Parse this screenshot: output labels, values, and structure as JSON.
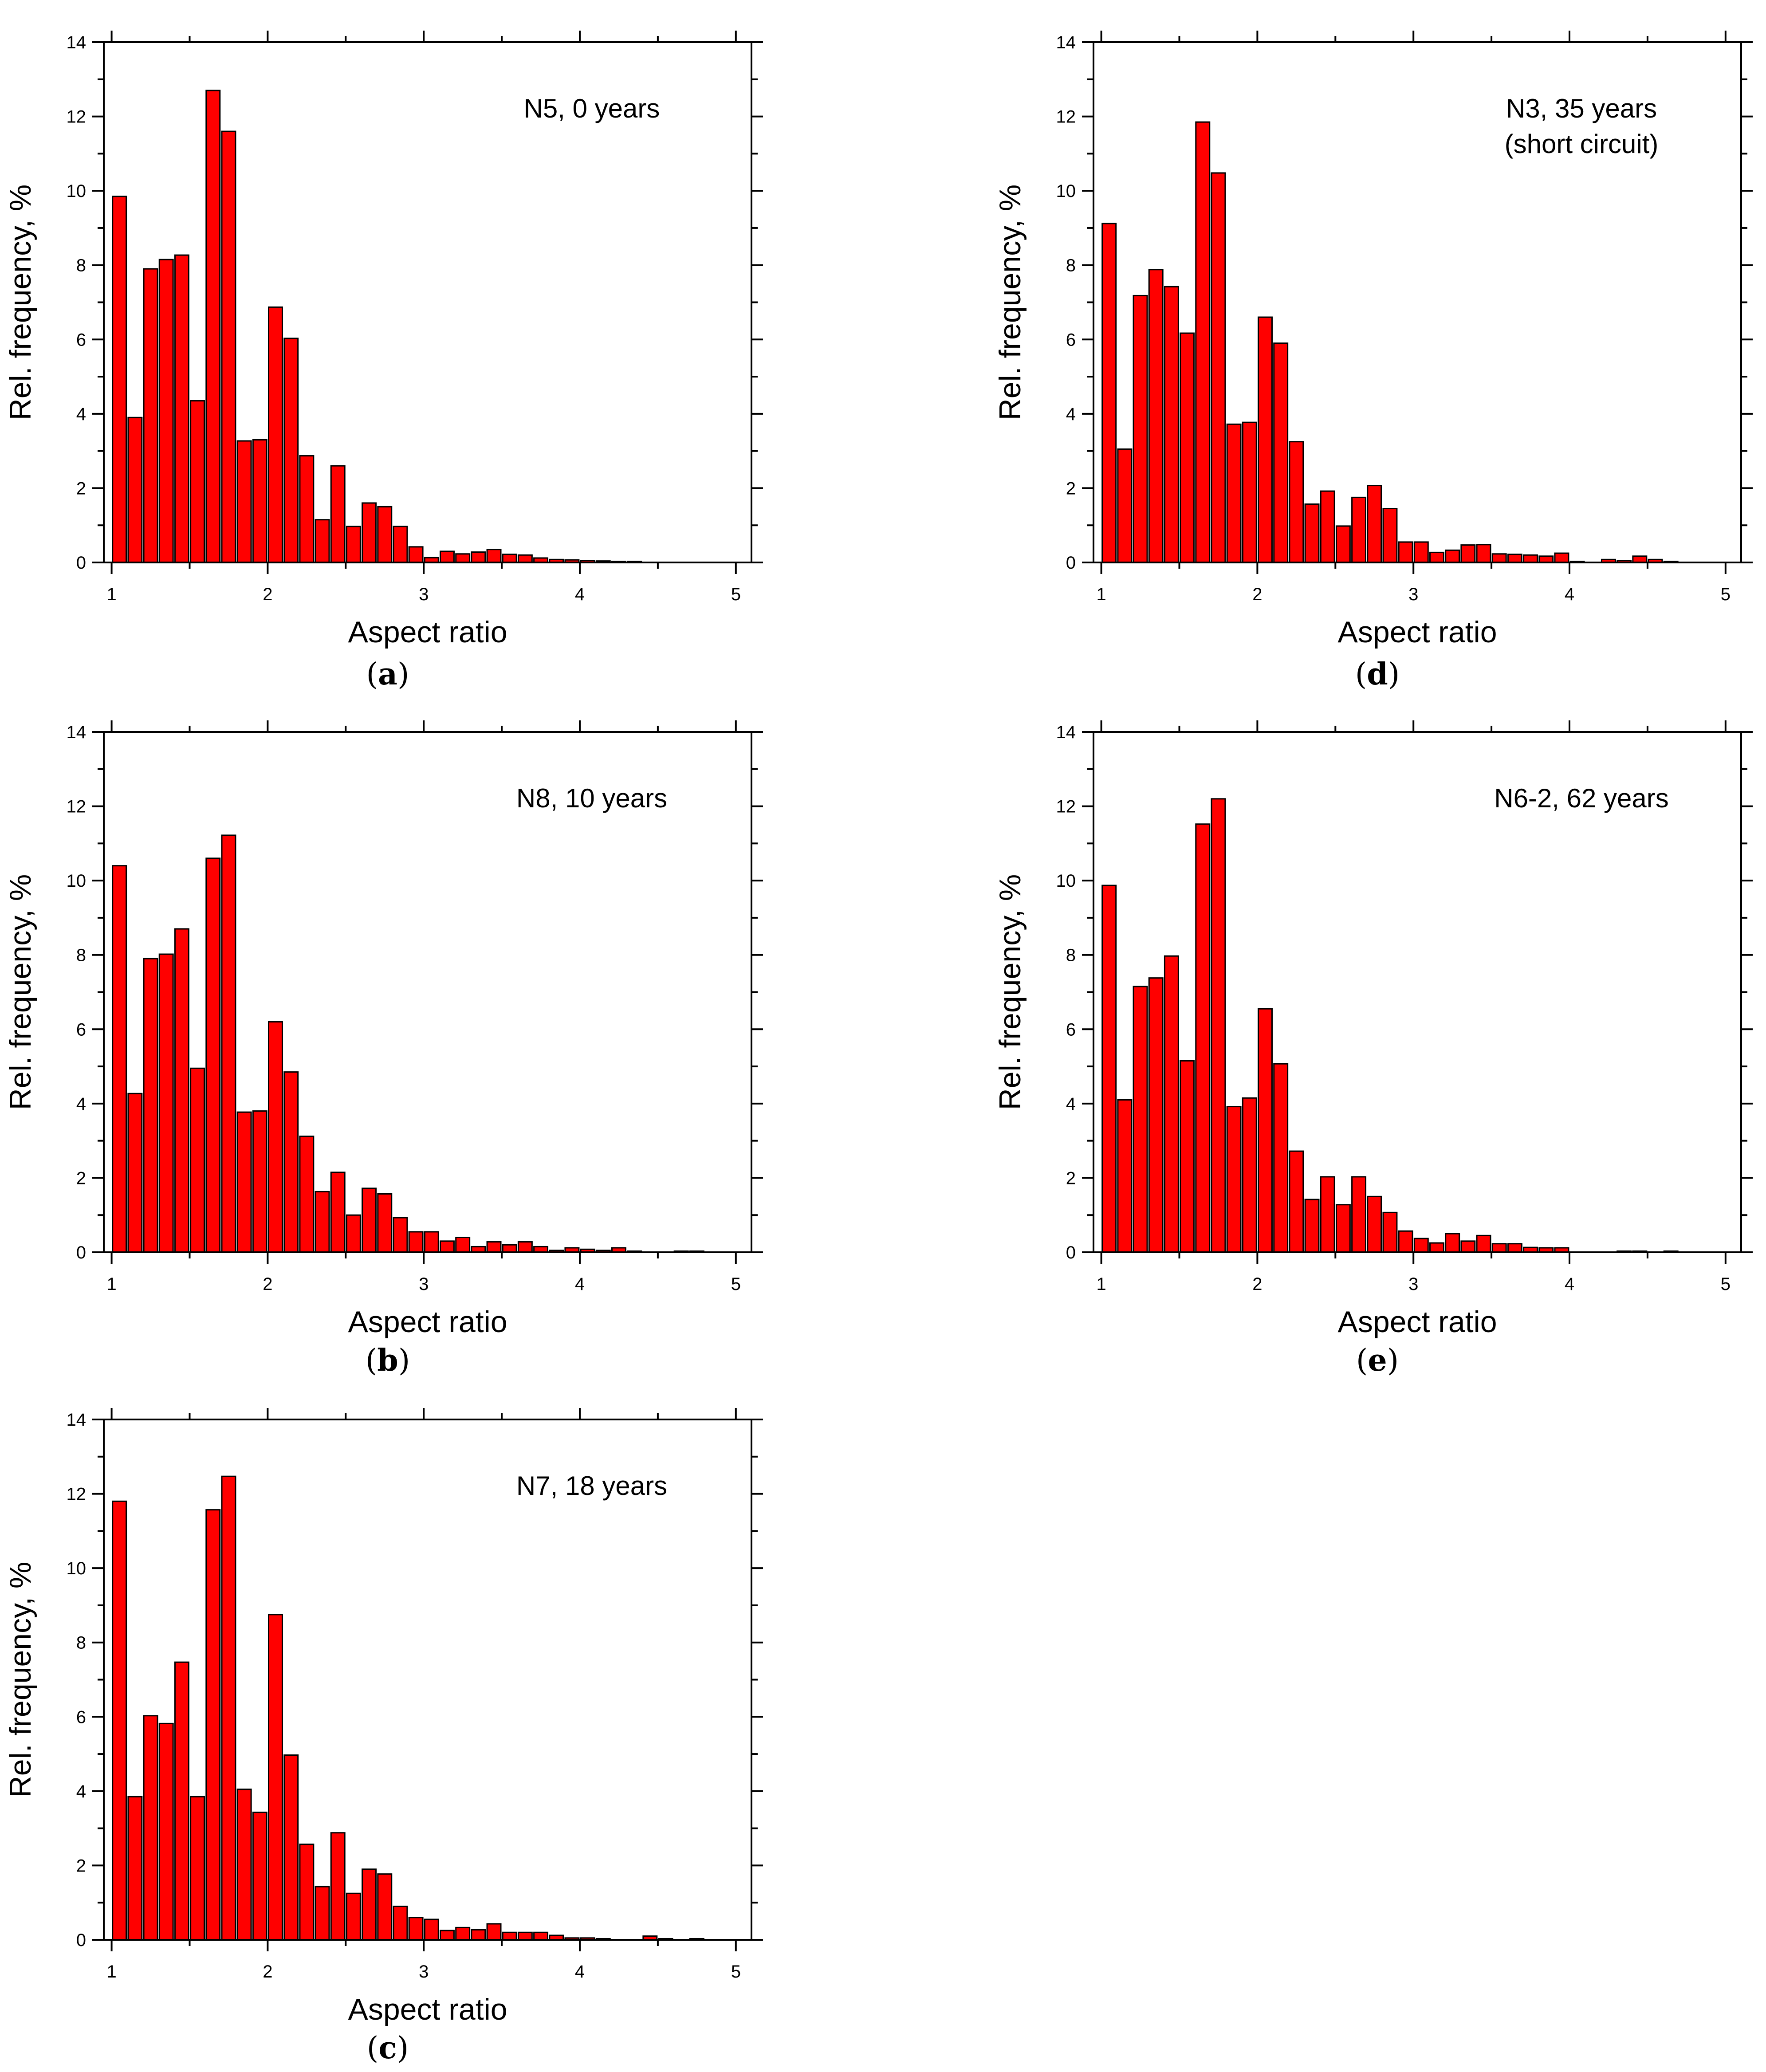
{
  "figure": {
    "colors": {
      "bar_fill": "#ff0000",
      "bar_stroke": "#000000",
      "axis": "#000000",
      "background": "#ffffff"
    }
  },
  "chart_data": [
    {
      "id": "a",
      "type": "bar",
      "panel_label": "a",
      "annotation": [
        "N5, 0 years"
      ],
      "xlabel": "Aspect ratio",
      "ylabel": "Rel. frequency, %",
      "xlim": [
        0.95,
        5.1
      ],
      "ylim": [
        0,
        14
      ],
      "xticks": [
        1,
        2,
        3,
        4,
        5
      ],
      "yticks": [
        0,
        2,
        4,
        6,
        8,
        10,
        12,
        14
      ],
      "bin_width": 0.1,
      "x": [
        1.05,
        1.15,
        1.25,
        1.35,
        1.45,
        1.55,
        1.65,
        1.75,
        1.85,
        1.95,
        2.05,
        2.15,
        2.25,
        2.35,
        2.45,
        2.55,
        2.65,
        2.75,
        2.85,
        2.95,
        3.05,
        3.15,
        3.25,
        3.35,
        3.45,
        3.55,
        3.65,
        3.75,
        3.85,
        3.95,
        4.05,
        4.15,
        4.25,
        4.35
      ],
      "values": [
        9.85,
        3.9,
        7.9,
        8.15,
        8.27,
        4.35,
        12.7,
        11.6,
        3.27,
        3.3,
        6.87,
        6.03,
        2.87,
        1.15,
        2.6,
        0.97,
        1.6,
        1.5,
        0.97,
        0.42,
        0.13,
        0.3,
        0.23,
        0.28,
        0.35,
        0.22,
        0.2,
        0.12,
        0.08,
        0.07,
        0.05,
        0.04,
        0.03,
        0.03
      ]
    },
    {
      "id": "b",
      "type": "bar",
      "panel_label": "b",
      "annotation": [
        "N8, 10 years"
      ],
      "xlabel": "Aspect ratio",
      "ylabel": "Rel. frequency, %",
      "xlim": [
        0.95,
        5.1
      ],
      "ylim": [
        0,
        14
      ],
      "xticks": [
        1,
        2,
        3,
        4,
        5
      ],
      "yticks": [
        0,
        2,
        4,
        6,
        8,
        10,
        12,
        14
      ],
      "bin_width": 0.1,
      "x": [
        1.05,
        1.15,
        1.25,
        1.35,
        1.45,
        1.55,
        1.65,
        1.75,
        1.85,
        1.95,
        2.05,
        2.15,
        2.25,
        2.35,
        2.45,
        2.55,
        2.65,
        2.75,
        2.85,
        2.95,
        3.05,
        3.15,
        3.25,
        3.35,
        3.45,
        3.55,
        3.65,
        3.75,
        3.85,
        3.95,
        4.05,
        4.15,
        4.25,
        4.35,
        4.65,
        4.75
      ],
      "values": [
        10.4,
        4.27,
        7.9,
        8.02,
        8.7,
        4.95,
        10.6,
        11.22,
        3.77,
        3.8,
        6.2,
        4.85,
        3.12,
        1.63,
        2.15,
        1.0,
        1.72,
        1.57,
        0.93,
        0.55,
        0.55,
        0.3,
        0.4,
        0.15,
        0.28,
        0.2,
        0.28,
        0.15,
        0.05,
        0.12,
        0.08,
        0.05,
        0.12,
        0.03,
        0.03,
        0.03
      ]
    },
    {
      "id": "c",
      "type": "bar",
      "panel_label": "c",
      "annotation": [
        "N7, 18 years"
      ],
      "xlabel": "Aspect ratio",
      "ylabel": "Rel. frequency, %",
      "xlim": [
        0.95,
        5.1
      ],
      "ylim": [
        0,
        14
      ],
      "xticks": [
        1,
        2,
        3,
        4,
        5
      ],
      "yticks": [
        0,
        2,
        4,
        6,
        8,
        10,
        12,
        14
      ],
      "bin_width": 0.1,
      "x": [
        1.05,
        1.15,
        1.25,
        1.35,
        1.45,
        1.55,
        1.65,
        1.75,
        1.85,
        1.95,
        2.05,
        2.15,
        2.25,
        2.35,
        2.45,
        2.55,
        2.65,
        2.75,
        2.85,
        2.95,
        3.05,
        3.15,
        3.25,
        3.35,
        3.45,
        3.55,
        3.65,
        3.75,
        3.85,
        3.95,
        4.05,
        4.15,
        4.45,
        4.55,
        4.75
      ],
      "values": [
        11.8,
        3.85,
        6.03,
        5.82,
        7.47,
        3.85,
        11.57,
        12.47,
        4.05,
        3.43,
        8.75,
        4.97,
        2.57,
        1.43,
        2.88,
        1.25,
        1.9,
        1.77,
        0.9,
        0.6,
        0.55,
        0.25,
        0.33,
        0.27,
        0.43,
        0.2,
        0.2,
        0.2,
        0.12,
        0.05,
        0.05,
        0.03,
        0.1,
        0.03,
        0.03
      ]
    },
    {
      "id": "d",
      "type": "bar",
      "panel_label": "d",
      "annotation": [
        "N3, 35 years",
        "(short circuit)"
      ],
      "xlabel": "Aspect ratio",
      "ylabel": "Rel. frequency, %",
      "xlim": [
        0.95,
        5.1
      ],
      "ylim": [
        0,
        14
      ],
      "xticks": [
        1,
        2,
        3,
        4,
        5
      ],
      "yticks": [
        0,
        2,
        4,
        6,
        8,
        10,
        12,
        14
      ],
      "bin_width": 0.1,
      "x": [
        1.05,
        1.15,
        1.25,
        1.35,
        1.45,
        1.55,
        1.65,
        1.75,
        1.85,
        1.95,
        2.05,
        2.15,
        2.25,
        2.35,
        2.45,
        2.55,
        2.65,
        2.75,
        2.85,
        2.95,
        3.05,
        3.15,
        3.25,
        3.35,
        3.45,
        3.55,
        3.65,
        3.75,
        3.85,
        3.95,
        4.05,
        4.25,
        4.35,
        4.45,
        4.55,
        4.65
      ],
      "values": [
        9.12,
        3.05,
        7.18,
        7.88,
        7.42,
        6.17,
        11.85,
        10.48,
        3.72,
        3.77,
        6.6,
        5.9,
        3.25,
        1.57,
        1.92,
        0.98,
        1.75,
        2.07,
        1.45,
        0.55,
        0.55,
        0.27,
        0.33,
        0.47,
        0.48,
        0.23,
        0.22,
        0.2,
        0.17,
        0.25,
        0.03,
        0.08,
        0.05,
        0.17,
        0.08,
        0.03
      ]
    },
    {
      "id": "e",
      "type": "bar",
      "panel_label": "e",
      "annotation": [
        "N6-2, 62 years"
      ],
      "xlabel": "Aspect ratio",
      "ylabel": "Rel. frequency, %",
      "xlim": [
        0.95,
        5.1
      ],
      "ylim": [
        0,
        14
      ],
      "xticks": [
        1,
        2,
        3,
        4,
        5
      ],
      "yticks": [
        0,
        2,
        4,
        6,
        8,
        10,
        12,
        14
      ],
      "bin_width": 0.1,
      "x": [
        1.05,
        1.15,
        1.25,
        1.35,
        1.45,
        1.55,
        1.65,
        1.75,
        1.85,
        1.95,
        2.05,
        2.15,
        2.25,
        2.35,
        2.45,
        2.55,
        2.65,
        2.75,
        2.85,
        2.95,
        3.05,
        3.15,
        3.25,
        3.35,
        3.45,
        3.55,
        3.65,
        3.75,
        3.85,
        3.95,
        4.35,
        4.45,
        4.65
      ],
      "values": [
        9.87,
        4.1,
        7.15,
        7.38,
        7.97,
        5.15,
        11.52,
        12.2,
        3.92,
        4.15,
        6.55,
        5.07,
        2.72,
        1.42,
        2.03,
        1.28,
        2.03,
        1.5,
        1.07,
        0.57,
        0.37,
        0.25,
        0.5,
        0.3,
        0.45,
        0.23,
        0.23,
        0.13,
        0.12,
        0.12,
        0.03,
        0.03,
        0.03
      ]
    }
  ]
}
